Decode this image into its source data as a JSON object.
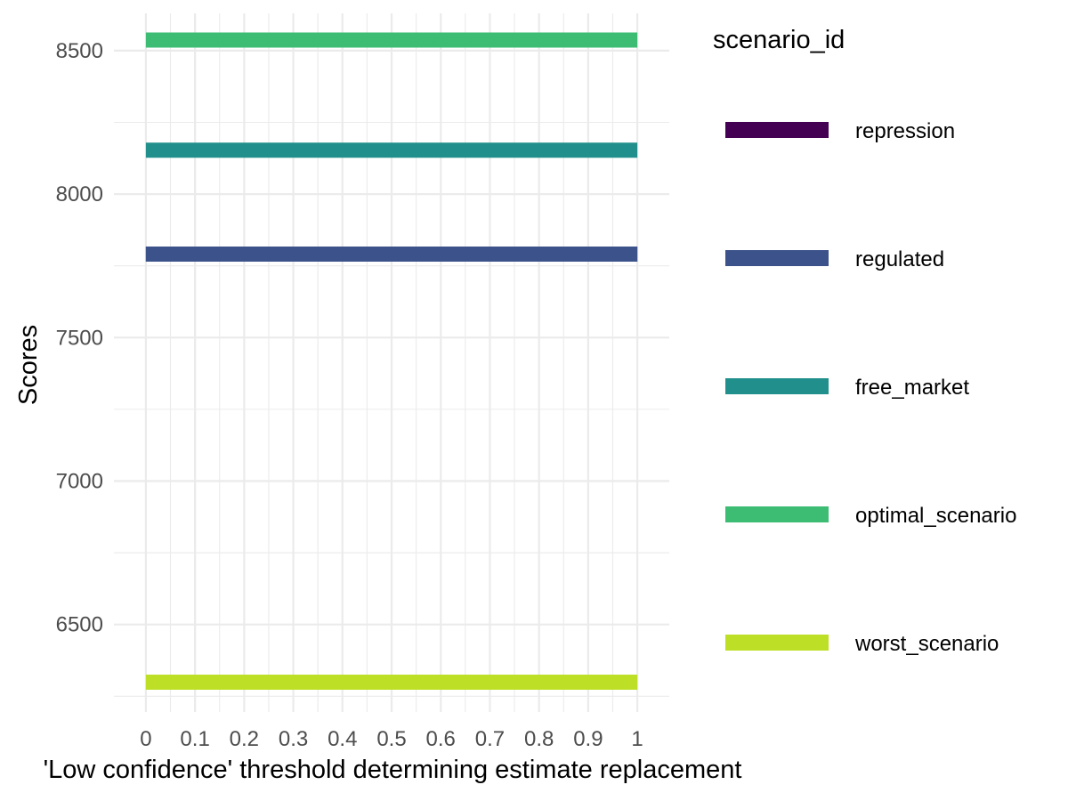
{
  "chart_data": {
    "type": "line",
    "title": "",
    "xlabel": "'Low confidence' threshold determining estimate replacement",
    "ylabel": "Scores",
    "x_ticks": [
      "0",
      "0.1",
      "0.2",
      "0.3",
      "0.4",
      "0.5",
      "0.6",
      "0.7",
      "0.8",
      "0.9",
      "1"
    ],
    "x_tick_values": [
      0,
      0.1,
      0.2,
      0.3,
      0.4,
      0.5,
      0.6,
      0.7,
      0.8,
      0.9,
      1
    ],
    "y_ticks": [
      "6500",
      "7000",
      "7500",
      "8000",
      "8500"
    ],
    "y_tick_values": [
      6500,
      7000,
      7500,
      8000,
      8500
    ],
    "xlim": [
      -0.065,
      1.065
    ],
    "ylim": [
      6195,
      8630
    ],
    "grid": true,
    "legend": {
      "title": "scenario_id",
      "position": "right"
    },
    "x": [
      0,
      0.1,
      0.2,
      0.3,
      0.4,
      0.5,
      0.6,
      0.7,
      0.8,
      0.9,
      1
    ],
    "series": [
      {
        "name": "repression",
        "color": "#440154",
        "values": [
          7791,
          7791,
          7791,
          7791,
          7791,
          7791,
          7791,
          7791,
          7791,
          7791,
          7791
        ]
      },
      {
        "name": "regulated",
        "color": "#3b528b",
        "values": [
          7791,
          7791,
          7791,
          7791,
          7791,
          7791,
          7791,
          7791,
          7791,
          7791,
          7791
        ]
      },
      {
        "name": "free_market",
        "color": "#21908c",
        "values": [
          8153,
          8153,
          8153,
          8153,
          8153,
          8153,
          8153,
          8153,
          8153,
          8153,
          8153
        ]
      },
      {
        "name": "optimal_scenario",
        "color": "#3dbc74",
        "values": [
          8537,
          8537,
          8537,
          8537,
          8537,
          8537,
          8537,
          8537,
          8537,
          8537,
          8537
        ]
      },
      {
        "name": "worst_scenario",
        "color": "#bddf26",
        "values": [
          6299,
          6299,
          6299,
          6299,
          6299,
          6299,
          6299,
          6299,
          6299,
          6299,
          6299
        ]
      }
    ]
  }
}
